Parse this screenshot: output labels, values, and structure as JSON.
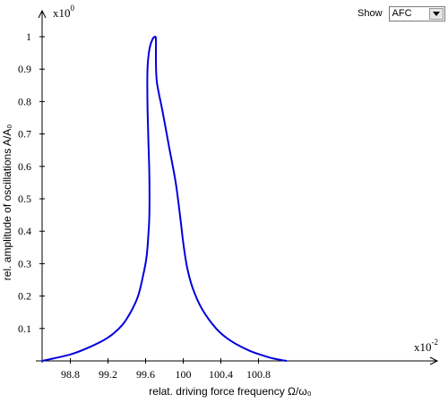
{
  "controls": {
    "show_label": "Show",
    "show_value": "AFC"
  },
  "chart_data": {
    "type": "line",
    "xlabel": "relat. driving force frequency Ω/ω₀",
    "ylabel": "rel. amplitude of oscillations A/A₀",
    "x_multiplier": {
      "base": "x10",
      "exponent": "-2"
    },
    "y_multiplier": {
      "base": "x10",
      "exponent": "0"
    },
    "x_ticks": [
      "98.8",
      "99.2",
      "99.6",
      "100",
      "100.4",
      "100.8"
    ],
    "y_ticks": [
      "0.1",
      "0.2",
      "0.3",
      "0.4",
      "0.5",
      "0.6",
      "0.7",
      "0.8",
      "0.9",
      "1"
    ],
    "xlim": [
      98.5,
      101.2
    ],
    "ylim": [
      0,
      1.1
    ],
    "grid": false,
    "series": [
      {
        "color": "#0000dd",
        "x": [
          98.5,
          98.8,
          99.0,
          99.2,
          99.35,
          99.45,
          99.52,
          99.57,
          99.61,
          99.63,
          99.64,
          99.64,
          99.63,
          99.62,
          99.62,
          99.64,
          99.67,
          99.7,
          99.71,
          99.71,
          99.72,
          99.78,
          99.85,
          99.92,
          99.97,
          100.0,
          100.04,
          100.1,
          100.2,
          100.35,
          100.5,
          100.7,
          100.9,
          101.0,
          101.1
        ],
        "y": [
          0.0,
          0.02,
          0.042,
          0.072,
          0.11,
          0.155,
          0.2,
          0.258,
          0.32,
          0.39,
          0.45,
          0.57,
          0.68,
          0.79,
          0.9,
          0.96,
          0.99,
          1.0,
          0.99,
          0.93,
          0.86,
          0.77,
          0.66,
          0.55,
          0.44,
          0.365,
          0.29,
          0.225,
          0.16,
          0.1,
          0.063,
          0.032,
          0.012,
          0.005,
          0.0
        ]
      }
    ]
  }
}
